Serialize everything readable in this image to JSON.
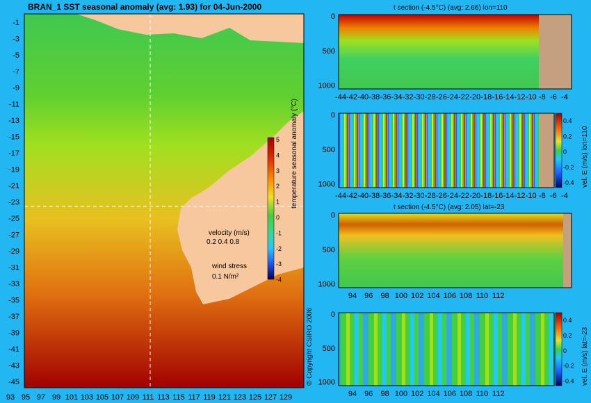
{
  "colors": {
    "background": "#22b7f2",
    "land": "#f7c79d",
    "section_land": "#c5a07e",
    "colormap": [
      "#000060",
      "#0000c8",
      "#2060ff",
      "#20c8ff",
      "#30d8a0",
      "#40d040",
      "#a0e020",
      "#f0e020",
      "#ff9000",
      "#e03000",
      "#a00000"
    ]
  },
  "chart_data": [
    {
      "id": "sst_map",
      "type": "heatmap",
      "title": "BRAN_1 SST seasonal anomaly (avg: 1.93) for 04-Jun-2000",
      "x_ticks": [
        "93",
        "95",
        "97",
        "99",
        "101",
        "103",
        "105",
        "107",
        "109",
        "111",
        "113",
        "115",
        "117",
        "119",
        "121",
        "123",
        "125",
        "127",
        "129"
      ],
      "y_ticks": [
        "-1",
        "-3",
        "-5",
        "-7",
        "-9",
        "-11",
        "-13",
        "-15",
        "-17",
        "-19",
        "-21",
        "-23",
        "-25",
        "-27",
        "-29",
        "-31",
        "-33",
        "-35",
        "-37",
        "-39",
        "-41",
        "-43",
        "-45"
      ],
      "xlim": [
        93,
        130
      ],
      "ylim": [
        -45,
        0
      ],
      "colorbar": {
        "label": "temperature seasonal anomaly (°C)",
        "ticks": [
          "5",
          "4",
          "3",
          "2",
          "1",
          "0",
          "-1",
          "-2",
          "-3",
          "-4"
        ],
        "range": [
          -4,
          5
        ]
      },
      "velocity_legend": {
        "title": "velocity (m/s)",
        "values": "0.2 0.4 0.8"
      },
      "wind_legend": {
        "title": "wind stress",
        "value": "0.1 N/m²"
      },
      "copyright": "© Copyright CSIRO 2006"
    },
    {
      "id": "t_section_lon",
      "type": "heatmap",
      "title": "t section (-4.5°C) (avg: 2.66) lon=110",
      "x_ticks": [
        "-44",
        "-42",
        "-40",
        "-38",
        "-36",
        "-34",
        "-32",
        "-30",
        "-28",
        "-26",
        "-24",
        "-22",
        "-20",
        "-18",
        "-16",
        "-14",
        "-12",
        "-10",
        "-8",
        "-6",
        "-4"
      ],
      "y_ticks": [
        "0",
        "500",
        "1000"
      ]
    },
    {
      "id": "vel_section_lon",
      "type": "heatmap",
      "x_ticks": [
        "-44",
        "-42",
        "-40",
        "-38",
        "-36",
        "-34",
        "-32",
        "-30",
        "-28",
        "-26",
        "-24",
        "-22",
        "-20",
        "-18",
        "-16",
        "-14",
        "-12",
        "-10",
        "-8",
        "-6",
        "-4"
      ],
      "y_ticks": [
        "0",
        "500",
        "1000"
      ],
      "colorbar": {
        "label": "vel. E (m/s) lon=110",
        "ticks": [
          "0.4",
          "0.2",
          "0",
          "-0.2",
          "-0.4"
        ]
      }
    },
    {
      "id": "t_section_lat",
      "type": "heatmap",
      "title": "t section (-4.5°C) (avg: 2.05) lat=-23",
      "x_ticks": [
        "94",
        "96",
        "98",
        "100",
        "102",
        "104",
        "106",
        "108",
        "110",
        "112"
      ],
      "y_ticks": [
        "0",
        "500",
        "1000"
      ]
    },
    {
      "id": "vel_section_lat",
      "type": "heatmap",
      "x_ticks": [
        "94",
        "96",
        "98",
        "100",
        "102",
        "104",
        "106",
        "108",
        "110",
        "112"
      ],
      "y_ticks": [
        "0",
        "500",
        "1000"
      ],
      "colorbar": {
        "label": "vel. E (m/s) lat=-23",
        "ticks": [
          "0.4",
          "0.2",
          "0",
          "-0.2",
          "-0.4"
        ]
      }
    }
  ]
}
